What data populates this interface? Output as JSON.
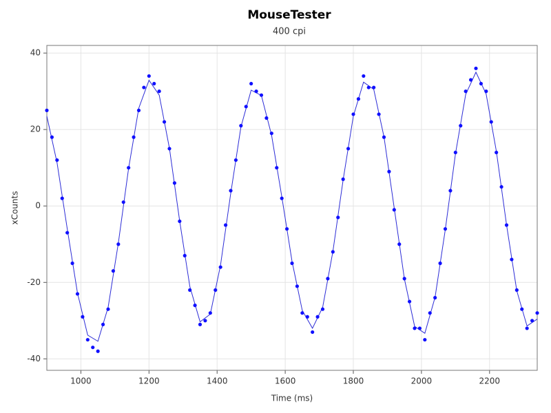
{
  "chart_data": {
    "type": "scatter",
    "title": "MouseTester",
    "subtitle": "400 cpi",
    "x_label": "Time (ms)",
    "y_label": "xCounts",
    "xlim": [
      900,
      2340
    ],
    "ylim": [
      -43,
      42
    ],
    "xticks": [
      1000,
      1200,
      1400,
      1600,
      1800,
      2000,
      2200
    ],
    "yticks": [
      -40,
      -20,
      0,
      20,
      40
    ],
    "grid": true,
    "series": [
      {
        "type": "line",
        "color": "#2b2bd6",
        "x": [
          900,
          930,
          960,
          990,
          1020,
          1050,
          1080,
          1110,
          1140,
          1170,
          1200,
          1230,
          1260,
          1290,
          1320,
          1350,
          1380,
          1410,
          1440,
          1470,
          1500,
          1530,
          1560,
          1590,
          1620,
          1650,
          1680,
          1710,
          1740,
          1770,
          1800,
          1830,
          1860,
          1890,
          1920,
          1950,
          1980,
          2010,
          2040,
          2070,
          2100,
          2130,
          2160,
          2190,
          2220,
          2250,
          2280,
          2310,
          2340
        ],
        "values": [
          23.5,
          11.3,
          -6.0,
          -22.8,
          -33.8,
          -35.4,
          -26.5,
          -9.7,
          9.8,
          25.6,
          32.9,
          29.0,
          15.1,
          -3.9,
          -21.1,
          -30.3,
          -28.3,
          -15.5,
          3.3,
          20.7,
          30.3,
          28.9,
          18.5,
          2.4,
          -14.5,
          -27.3,
          -32.0,
          -26.5,
          -11.9,
          6.8,
          23.5,
          32.4,
          30.5,
          18.1,
          -0.5,
          -19.1,
          -31.5,
          -33.3,
          -23.9,
          -6.2,
          13.7,
          29.2,
          35.0,
          29.3,
          14.3,
          -5.0,
          -22.2,
          -31.4,
          -29.6
        ]
      },
      {
        "type": "scatter",
        "color": "#1010ff",
        "x": [
          900,
          915,
          930,
          945,
          960,
          975,
          990,
          1005,
          1020,
          1035,
          1050,
          1065,
          1080,
          1095,
          1110,
          1125,
          1140,
          1155,
          1170,
          1185,
          1200,
          1215,
          1230,
          1245,
          1260,
          1275,
          1290,
          1305,
          1320,
          1335,
          1350,
          1365,
          1380,
          1395,
          1410,
          1425,
          1440,
          1455,
          1470,
          1485,
          1500,
          1515,
          1530,
          1545,
          1560,
          1575,
          1590,
          1605,
          1620,
          1635,
          1650,
          1665,
          1680,
          1695,
          1710,
          1725,
          1740,
          1755,
          1770,
          1785,
          1800,
          1815,
          1830,
          1845,
          1860,
          1875,
          1890,
          1905,
          1920,
          1935,
          1950,
          1965,
          1980,
          1995,
          2010,
          2025,
          2040,
          2055,
          2070,
          2085,
          2100,
          2115,
          2130,
          2145,
          2160,
          2175,
          2190,
          2205,
          2220,
          2235,
          2250,
          2265,
          2280,
          2295,
          2310,
          2325,
          2340
        ],
        "values": [
          25,
          18,
          12,
          2,
          -7,
          -15,
          -23,
          -29,
          -35,
          -37,
          -38,
          -31,
          -27,
          -17,
          -10,
          1,
          10,
          18,
          25,
          31,
          34,
          32,
          30,
          22,
          15,
          6,
          -4,
          -13,
          -22,
          -26,
          -31,
          -30,
          -28,
          -22,
          -16,
          -5,
          4,
          12,
          21,
          26,
          32,
          30,
          29,
          23,
          19,
          10,
          2,
          -6,
          -15,
          -21,
          -28,
          -29,
          -33,
          -29,
          -27,
          -19,
          -12,
          -3,
          7,
          15,
          24,
          28,
          34,
          31,
          31,
          24,
          18,
          9,
          -1,
          -10,
          -19,
          -25,
          -32,
          -32,
          -35,
          -28,
          -24,
          -15,
          -6,
          4,
          14,
          21,
          30,
          33,
          36,
          32,
          30,
          22,
          14,
          5,
          -5,
          -14,
          -22,
          -27,
          -32,
          -30,
          -28
        ]
      }
    ]
  }
}
